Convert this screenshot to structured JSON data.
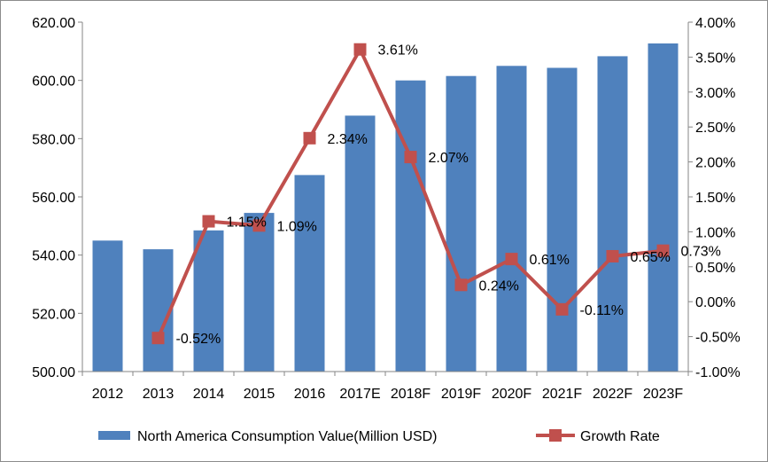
{
  "chart_data": {
    "type": "bar",
    "title": "",
    "xlabel": "",
    "ylabel": "",
    "categories": [
      "2012",
      "2013",
      "2014",
      "2015",
      "2016",
      "2017E",
      "2018F",
      "2019F",
      "2020F",
      "2021F",
      "2022F",
      "2023F"
    ],
    "series": [
      {
        "name": "North America Consumption Value(Million USD)",
        "type": "bar",
        "axis": "left",
        "color": "#4f81bd",
        "values": [
          545.0,
          542.0,
          548.5,
          554.5,
          567.5,
          587.9,
          600.0,
          601.5,
          605.0,
          604.3,
          608.3,
          612.7
        ]
      },
      {
        "name": "Growth Rate",
        "type": "line",
        "axis": "right",
        "color": "#c0504d",
        "marker": "square",
        "values": [
          null,
          -0.52,
          1.15,
          1.09,
          2.34,
          3.61,
          2.07,
          0.24,
          0.61,
          -0.11,
          0.65,
          0.73
        ],
        "labels": [
          "",
          "-0.52%",
          "1.15%",
          "1.09%",
          "2.34%",
          "3.61%",
          "2.07%",
          "0.24%",
          "0.61%",
          "-0.11%",
          "0.65%",
          "0.73%"
        ]
      }
    ],
    "ylim": [
      500,
      620
    ],
    "ytick_values": [
      500,
      520,
      540,
      560,
      580,
      600,
      620
    ],
    "yticks": [
      "500.00",
      "520.00",
      "540.00",
      "560.00",
      "580.00",
      "600.00",
      "620.00"
    ],
    "y2lim": [
      -1.0,
      4.0
    ],
    "y2tick_values": [
      -1.0,
      -0.5,
      0.0,
      0.5,
      1.0,
      1.5,
      2.0,
      2.5,
      3.0,
      3.5,
      4.0
    ],
    "y2ticks": [
      "-1.00%",
      "-0.50%",
      "0.00%",
      "0.50%",
      "1.00%",
      "1.50%",
      "2.00%",
      "2.50%",
      "3.00%",
      "3.50%",
      "4.00%"
    ],
    "grid": false,
    "legend_position": "bottom"
  }
}
